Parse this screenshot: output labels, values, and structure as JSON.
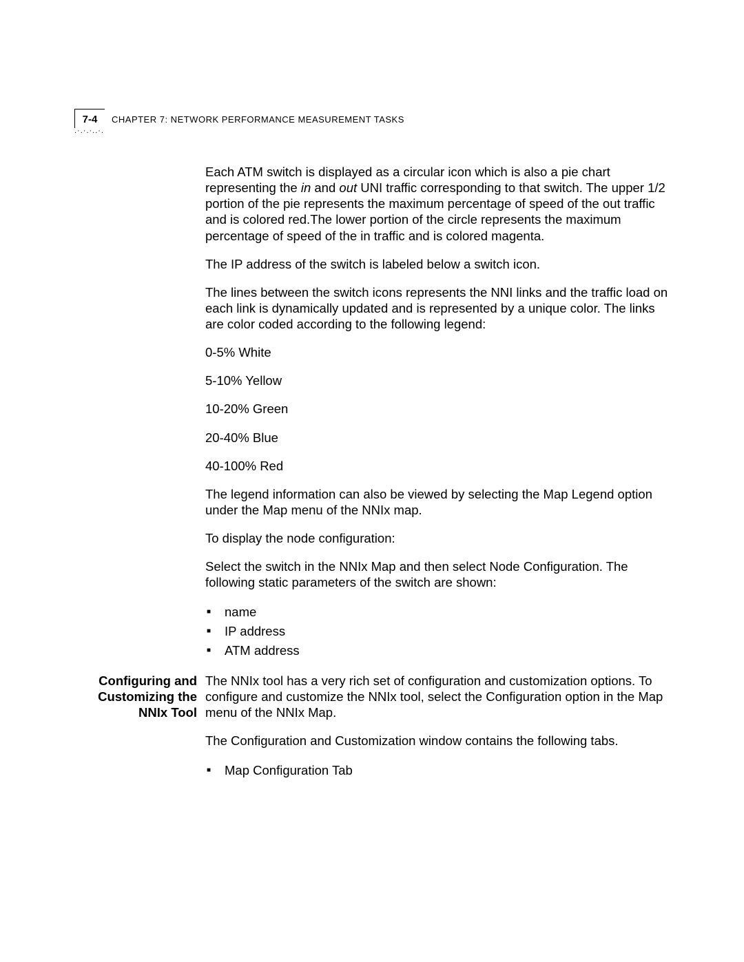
{
  "header": {
    "page_number": "7-4",
    "chapter_label": "CHAPTER 7: NETWORK PERFORMANCE MEASUREMENT TASKS",
    "dots": ".·.·.·..·."
  },
  "body": {
    "p1_a": "Each ATM switch is displayed as a circular icon which is also a pie chart representing the ",
    "p1_in": "in",
    "p1_b": " and ",
    "p1_out": "out",
    "p1_c": " UNI traffic corresponding to that switch. The upper 1/2 portion of the pie represents the maximum percentage of speed of the out traffic and is colored red.The lower portion of the circle represents the maximum percentage of speed of the in traffic and is colored magenta.",
    "p2": "The IP address of the switch is labeled below a switch icon.",
    "p3": "The lines between the switch icons represents the NNI links and the traffic load on each link is dynamically updated and is represented by a unique color. The links are color coded according to the following legend:",
    "legend": [
      "0-5% White",
      "5-10% Yellow",
      "10-20% Green",
      "20-40% Blue",
      "40-100% Red"
    ],
    "p4": "The legend information can also be viewed by selecting the Map Legend option under the Map menu of the NNIx map.",
    "p5": "To display the node configuration:",
    "p6": "Select the switch in the NNIx Map and then select Node Configuration. The following static parameters of the switch are shown:",
    "bullets1": [
      "name",
      "IP address",
      "ATM address"
    ],
    "section_heading": "Configuring and Customizing the NNIx Tool",
    "p7": "The NNIx tool has a very rich set of configuration and customization options. To configure and customize the NNIx tool, select the Configuration option in the Map menu of the NNIx Map.",
    "p8": "The Configuration and Customization window contains the following tabs.",
    "bullets2": [
      "Map Configuration Tab"
    ]
  }
}
